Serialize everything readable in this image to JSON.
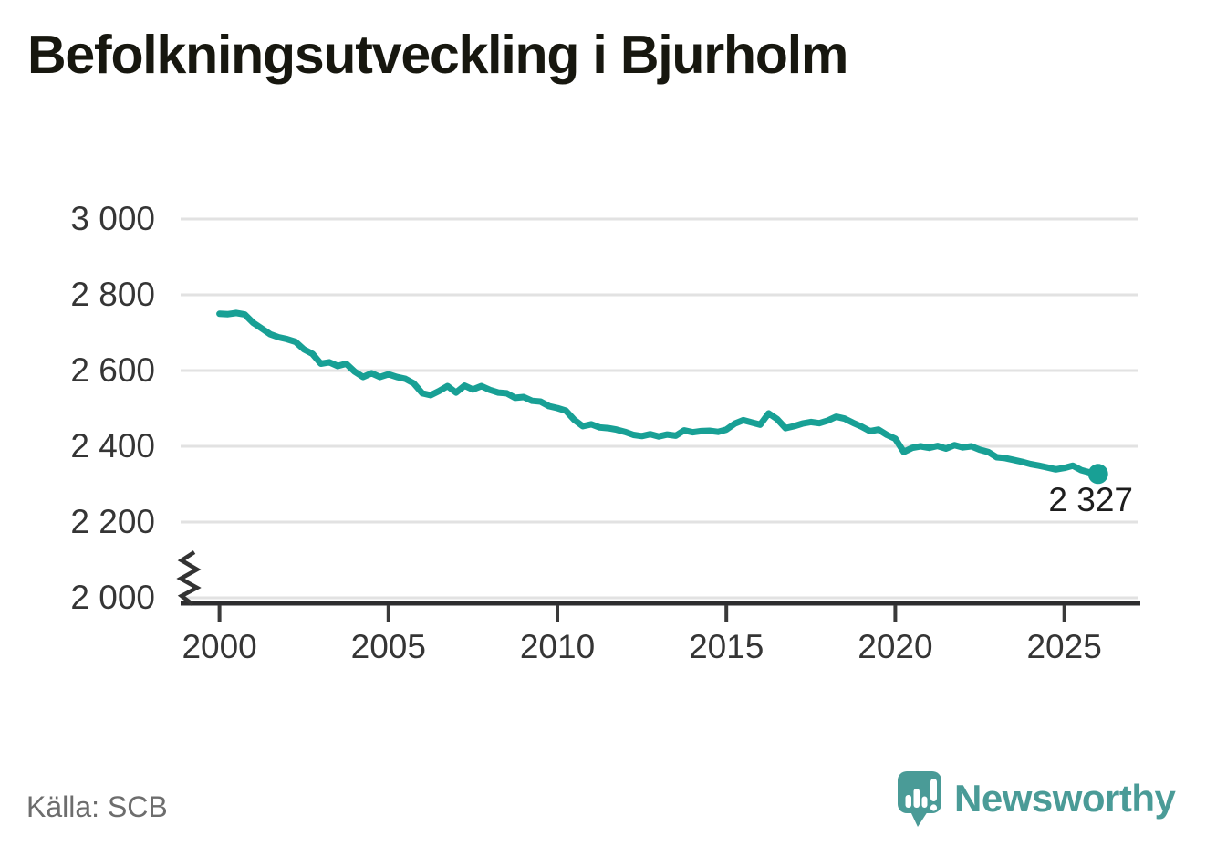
{
  "title": "Befolkningsutveckling i Bjurholm",
  "source": "Källa: SCB",
  "branding": {
    "logo_text": "Newsworthy",
    "logo_color": "#4a9b97",
    "logo_icon": "speech-bubble-bar-chart-exclamation"
  },
  "chart_data": {
    "type": "line",
    "title": "Befolkningsutveckling i Bjurholm",
    "xlabel": "",
    "ylabel": "",
    "grid": true,
    "legend": "none",
    "line_color": "#18a095",
    "ylim": [
      2000,
      3000
    ],
    "y_axis_break": true,
    "y_ticks": [
      2000,
      2200,
      2400,
      2600,
      2800,
      3000
    ],
    "y_tick_labels": [
      "2 000",
      "2 200",
      "2 400",
      "2 600",
      "2 800",
      "3 000"
    ],
    "x_ticks": [
      2000,
      2005,
      2010,
      2015,
      2020,
      2025
    ],
    "x_tick_labels": [
      "2000",
      "2005",
      "2010",
      "2015",
      "2020",
      "2025"
    ],
    "x_start": 2000.0,
    "x_step": 0.25,
    "end_label": "2 327",
    "last_point": {
      "x": 2026.0,
      "value": 2327
    },
    "series": [
      {
        "name": "Befolkning i Bjurholm",
        "values": [
          2750,
          2749,
          2752,
          2748,
          2726,
          2711,
          2696,
          2688,
          2683,
          2676,
          2656,
          2644,
          2618,
          2622,
          2612,
          2618,
          2597,
          2583,
          2593,
          2583,
          2590,
          2583,
          2578,
          2566,
          2540,
          2535,
          2546,
          2559,
          2542,
          2560,
          2550,
          2559,
          2549,
          2542,
          2540,
          2528,
          2530,
          2520,
          2518,
          2506,
          2501,
          2494,
          2470,
          2453,
          2458,
          2450,
          2448,
          2444,
          2438,
          2430,
          2427,
          2432,
          2426,
          2431,
          2428,
          2442,
          2437,
          2440,
          2441,
          2438,
          2444,
          2460,
          2469,
          2463,
          2457,
          2487,
          2472,
          2448,
          2453,
          2460,
          2464,
          2461,
          2468,
          2478,
          2473,
          2462,
          2452,
          2440,
          2444,
          2430,
          2420,
          2385,
          2396,
          2400,
          2396,
          2401,
          2394,
          2403,
          2397,
          2400,
          2391,
          2385,
          2371,
          2369,
          2364,
          2359,
          2353,
          2349,
          2344,
          2339,
          2343,
          2349,
          2337,
          2331,
          2327
        ]
      }
    ]
  }
}
